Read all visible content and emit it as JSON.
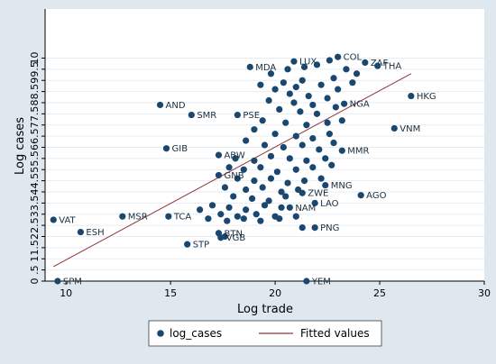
{
  "chart_data": {
    "type": "scatter",
    "xlabel": "Log trade",
    "ylabel": "Log cases",
    "xlim": [
      9,
      30
    ],
    "ylim": [
      0,
      12.2
    ],
    "x_ticks": [
      "10",
      "15",
      "20",
      "25",
      "30"
    ],
    "y_ticks": [
      "0",
      ".5",
      "1",
      "1.5",
      "2",
      "2.5",
      "3",
      "3.5",
      "4",
      "4.5",
      "5",
      "5.5",
      "6",
      "6.5",
      "7",
      "7.5",
      "8",
      "8.5",
      "9",
      "9.5",
      "10"
    ],
    "grid": true,
    "legend_position": "bottom",
    "legend": [
      {
        "key": "points",
        "label": "log_cases"
      },
      {
        "key": "fit",
        "label": "Fitted values"
      }
    ],
    "colors": {
      "points": "#1a476f",
      "fit": "#90353b",
      "background": "#dfe8ef",
      "plot_area": "#ffffff",
      "grid": "#e6edf2"
    },
    "fitted_line": {
      "x": [
        9.4,
        26.5
      ],
      "y": [
        0.65,
        9.3
      ]
    },
    "labeled_points": [
      {
        "label": "COL",
        "x": 23.0,
        "y": 10.05
      },
      {
        "label": "ZAF",
        "x": 24.3,
        "y": 9.8
      },
      {
        "label": "THA",
        "x": 24.9,
        "y": 9.65
      },
      {
        "label": "LUX",
        "x": 20.9,
        "y": 9.85
      },
      {
        "label": "MDA",
        "x": 18.8,
        "y": 9.6
      },
      {
        "label": "HKG",
        "x": 26.5,
        "y": 8.3
      },
      {
        "label": "AND",
        "x": 14.5,
        "y": 7.9
      },
      {
        "label": "SMR",
        "x": 16.0,
        "y": 7.45
      },
      {
        "label": "PSE",
        "x": 18.2,
        "y": 7.45
      },
      {
        "label": "NGA",
        "x": 23.3,
        "y": 7.95
      },
      {
        "label": "VNM",
        "x": 25.7,
        "y": 6.85
      },
      {
        "label": "GIB",
        "x": 14.8,
        "y": 5.95
      },
      {
        "label": "MMR",
        "x": 23.2,
        "y": 5.85
      },
      {
        "label": "ABW",
        "x": 17.3,
        "y": 5.65
      },
      {
        "label": "GNB",
        "x": 17.3,
        "y": 4.75
      },
      {
        "label": "MNG",
        "x": 22.4,
        "y": 4.3
      },
      {
        "label": "AGO",
        "x": 24.1,
        "y": 3.85
      },
      {
        "label": "ZWE",
        "x": 21.3,
        "y": 3.95
      },
      {
        "label": "LAO",
        "x": 21.9,
        "y": 3.5
      },
      {
        "label": "NAM",
        "x": 20.7,
        "y": 3.3
      },
      {
        "label": "VAT",
        "x": 9.4,
        "y": 2.75
      },
      {
        "label": "ESH",
        "x": 10.7,
        "y": 2.2
      },
      {
        "label": "MSR",
        "x": 12.7,
        "y": 2.9
      },
      {
        "label": "TCA",
        "x": 14.9,
        "y": 2.9
      },
      {
        "label": "BTN",
        "x": 17.3,
        "y": 2.15
      },
      {
        "label": "STP",
        "x": 15.8,
        "y": 1.65
      },
      {
        "label": "VGB",
        "x": 17.4,
        "y": 1.95
      },
      {
        "label": "PNG",
        "x": 21.9,
        "y": 2.4
      },
      {
        "label": "SPM",
        "x": 9.6,
        "y": 0.0
      },
      {
        "label": "YEM",
        "x": 21.5,
        "y": 0.0
      }
    ],
    "unlabeled_points": [
      [
        19.8,
        9.3
      ],
      [
        20.6,
        9.5
      ],
      [
        21.4,
        9.6
      ],
      [
        22.0,
        9.7
      ],
      [
        22.6,
        9.9
      ],
      [
        23.4,
        9.5
      ],
      [
        23.9,
        9.3
      ],
      [
        22.8,
        9.1
      ],
      [
        21.3,
        9.0
      ],
      [
        20.4,
        8.9
      ],
      [
        19.3,
        8.8
      ],
      [
        20.0,
        8.6
      ],
      [
        21.0,
        8.7
      ],
      [
        22.2,
        8.8
      ],
      [
        23.0,
        8.6
      ],
      [
        23.7,
        8.9
      ],
      [
        20.7,
        8.4
      ],
      [
        21.6,
        8.3
      ],
      [
        22.5,
        8.2
      ],
      [
        19.7,
        8.1
      ],
      [
        20.9,
        8.0
      ],
      [
        21.8,
        7.9
      ],
      [
        22.9,
        7.8
      ],
      [
        20.2,
        7.7
      ],
      [
        21.2,
        7.6
      ],
      [
        22.0,
        7.5
      ],
      [
        19.4,
        7.2
      ],
      [
        20.5,
        7.1
      ],
      [
        21.5,
        7.0
      ],
      [
        22.5,
        7.1
      ],
      [
        23.2,
        7.2
      ],
      [
        19.0,
        6.8
      ],
      [
        20.0,
        6.6
      ],
      [
        21.0,
        6.5
      ],
      [
        21.8,
        6.4
      ],
      [
        22.6,
        6.6
      ],
      [
        18.6,
        6.3
      ],
      [
        19.5,
        6.1
      ],
      [
        20.4,
        6.0
      ],
      [
        21.3,
        6.1
      ],
      [
        22.1,
        5.9
      ],
      [
        22.8,
        6.2
      ],
      [
        18.1,
        5.5
      ],
      [
        19.0,
        5.4
      ],
      [
        19.8,
        5.6
      ],
      [
        20.7,
        5.5
      ],
      [
        21.5,
        5.4
      ],
      [
        22.4,
        5.5
      ],
      [
        17.8,
        5.1
      ],
      [
        18.5,
        5.0
      ],
      [
        19.3,
        5.1
      ],
      [
        20.1,
        4.9
      ],
      [
        21.0,
        5.0
      ],
      [
        21.8,
        5.1
      ],
      [
        22.7,
        5.2
      ],
      [
        18.2,
        4.6
      ],
      [
        19.0,
        4.5
      ],
      [
        19.8,
        4.6
      ],
      [
        20.6,
        4.4
      ],
      [
        21.4,
        4.5
      ],
      [
        22.2,
        4.6
      ],
      [
        17.6,
        4.2
      ],
      [
        18.6,
        4.1
      ],
      [
        19.4,
        4.2
      ],
      [
        20.3,
        4.0
      ],
      [
        21.1,
        4.1
      ],
      [
        18.0,
        3.8
      ],
      [
        18.9,
        3.7
      ],
      [
        19.7,
        3.6
      ],
      [
        20.5,
        3.8
      ],
      [
        17.0,
        3.4
      ],
      [
        17.8,
        3.3
      ],
      [
        18.6,
        3.2
      ],
      [
        19.5,
        3.4
      ],
      [
        20.3,
        3.3
      ],
      [
        16.4,
        3.2
      ],
      [
        17.4,
        3.0
      ],
      [
        18.2,
        2.9
      ],
      [
        19.1,
        3.0
      ],
      [
        20.0,
        2.9
      ],
      [
        16.8,
        2.8
      ],
      [
        17.7,
        2.7
      ],
      [
        18.5,
        2.8
      ],
      [
        19.3,
        2.7
      ],
      [
        20.2,
        2.8
      ],
      [
        21.0,
        2.9
      ],
      [
        17.6,
        2.0
      ],
      [
        21.3,
        2.4
      ]
    ]
  }
}
